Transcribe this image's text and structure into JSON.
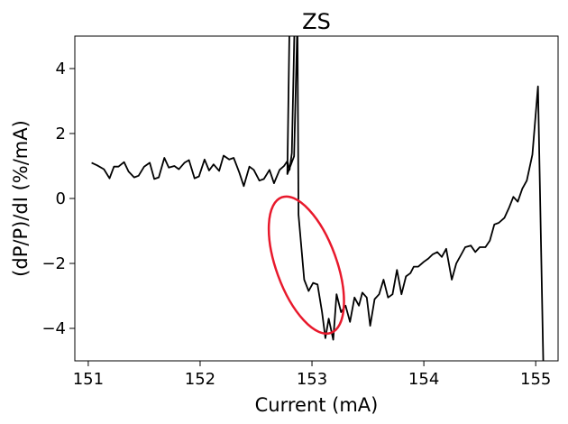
{
  "chart_data": {
    "type": "line",
    "title": "ZS",
    "xlabel": "Current (mA)",
    "ylabel": "(dP/P)/dI (%/mA)",
    "xlim": [
      150.88,
      155.2
    ],
    "ylim": [
      -5,
      5
    ],
    "xticks": [
      151,
      152,
      153,
      154,
      155
    ],
    "yticks": [
      -4,
      -2,
      0,
      2,
      4
    ],
    "x_tick_labels": [
      "151",
      "152",
      "153",
      "154",
      "155"
    ],
    "y_tick_labels": [
      "−4",
      "−2",
      "0",
      "2",
      "4"
    ],
    "grid": false,
    "line_color": "#000000",
    "ellipse_color": "#e8192c",
    "series": [
      {
        "values": [
          [
            151.03,
            1.1
          ],
          [
            151.08,
            1.02
          ],
          [
            151.14,
            0.9
          ],
          [
            151.19,
            0.62
          ],
          [
            151.23,
            0.98
          ],
          [
            151.27,
            0.98
          ],
          [
            151.32,
            1.12
          ],
          [
            151.36,
            0.83
          ],
          [
            151.41,
            0.65
          ],
          [
            151.45,
            0.7
          ],
          [
            151.5,
            0.98
          ],
          [
            151.55,
            1.1
          ],
          [
            151.59,
            0.6
          ],
          [
            151.63,
            0.65
          ],
          [
            151.68,
            1.25
          ],
          [
            151.72,
            0.95
          ],
          [
            151.77,
            1.0
          ],
          [
            151.81,
            0.9
          ],
          [
            151.86,
            1.1
          ],
          [
            151.9,
            1.18
          ],
          [
            151.95,
            0.62
          ],
          [
            151.99,
            0.68
          ],
          [
            152.04,
            1.2
          ],
          [
            152.08,
            0.86
          ],
          [
            152.12,
            1.05
          ],
          [
            152.17,
            0.85
          ],
          [
            152.21,
            1.32
          ],
          [
            152.26,
            1.2
          ],
          [
            152.3,
            1.25
          ],
          [
            152.35,
            0.8
          ],
          [
            152.39,
            0.38
          ],
          [
            152.44,
            0.98
          ],
          [
            152.48,
            0.88
          ],
          [
            152.53,
            0.55
          ],
          [
            152.57,
            0.6
          ],
          [
            152.62,
            0.88
          ],
          [
            152.66,
            0.47
          ],
          [
            152.71,
            0.88
          ],
          [
            152.75,
            1.0
          ],
          [
            152.78,
            1.15
          ],
          [
            152.8,
            0.88
          ],
          [
            152.82,
            1.4
          ],
          [
            152.845,
            5.5
          ],
          [
            152.8,
            5.5
          ],
          [
            152.78,
            0.75
          ],
          [
            152.84,
            1.3
          ],
          [
            152.87,
            5.5
          ],
          [
            152.88,
            -0.5
          ],
          [
            152.93,
            -2.5
          ],
          [
            152.97,
            -2.85
          ],
          [
            153.01,
            -2.6
          ],
          [
            153.05,
            -2.65
          ],
          [
            153.09,
            -3.5
          ],
          [
            153.12,
            -4.3
          ],
          [
            153.15,
            -3.7
          ],
          [
            153.19,
            -4.35
          ],
          [
            153.22,
            -2.95
          ],
          [
            153.26,
            -3.5
          ],
          [
            153.3,
            -3.3
          ],
          [
            153.34,
            -3.8
          ],
          [
            153.38,
            -3.05
          ],
          [
            153.42,
            -3.3
          ],
          [
            153.45,
            -2.9
          ],
          [
            153.49,
            -3.05
          ],
          [
            153.52,
            -3.92
          ],
          [
            153.56,
            -3.1
          ],
          [
            153.6,
            -2.95
          ],
          [
            153.64,
            -2.5
          ],
          [
            153.68,
            -3.05
          ],
          [
            153.72,
            -2.95
          ],
          [
            153.76,
            -2.2
          ],
          [
            153.8,
            -2.95
          ],
          [
            153.84,
            -2.4
          ],
          [
            153.88,
            -2.3
          ],
          [
            153.91,
            -2.1
          ],
          [
            153.95,
            -2.1
          ],
          [
            154.0,
            -1.95
          ],
          [
            154.04,
            -1.85
          ],
          [
            154.08,
            -1.72
          ],
          [
            154.12,
            -1.65
          ],
          [
            154.16,
            -1.8
          ],
          [
            154.2,
            -1.55
          ],
          [
            154.25,
            -2.5
          ],
          [
            154.29,
            -2.0
          ],
          [
            154.33,
            -1.75
          ],
          [
            154.37,
            -1.5
          ],
          [
            154.42,
            -1.45
          ],
          [
            154.46,
            -1.65
          ],
          [
            154.5,
            -1.5
          ],
          [
            154.55,
            -1.5
          ],
          [
            154.59,
            -1.3
          ],
          [
            154.63,
            -0.8
          ],
          [
            154.67,
            -0.75
          ],
          [
            154.72,
            -0.6
          ],
          [
            154.76,
            -0.3
          ],
          [
            154.8,
            0.05
          ],
          [
            154.84,
            -0.1
          ],
          [
            154.88,
            0.3
          ],
          [
            154.92,
            0.55
          ],
          [
            154.97,
            1.35
          ],
          [
            155.02,
            3.45
          ],
          [
            155.07,
            -5.5
          ]
        ]
      }
    ],
    "annotations": [
      {
        "shape": "ellipse",
        "center": [
          152.95,
          -2.05
        ],
        "rx": 0.27,
        "ry": 2.22,
        "tilt_deg": -20
      }
    ]
  }
}
